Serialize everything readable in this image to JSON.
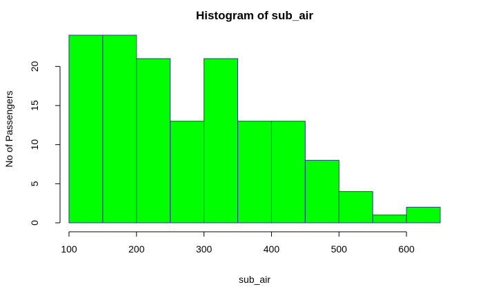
{
  "chart_data": {
    "type": "bar",
    "title": "Histogram of sub_air",
    "xlabel": "sub_air",
    "ylabel": "No of Passengers",
    "bins": [
      {
        "start": 100,
        "end": 150,
        "count": 24
      },
      {
        "start": 150,
        "end": 200,
        "count": 24
      },
      {
        "start": 200,
        "end": 250,
        "count": 21
      },
      {
        "start": 250,
        "end": 300,
        "count": 13
      },
      {
        "start": 300,
        "end": 350,
        "count": 21
      },
      {
        "start": 350,
        "end": 400,
        "count": 13
      },
      {
        "start": 400,
        "end": 450,
        "count": 13
      },
      {
        "start": 450,
        "end": 500,
        "count": 8
      },
      {
        "start": 500,
        "end": 550,
        "count": 4
      },
      {
        "start": 550,
        "end": 600,
        "count": 1
      },
      {
        "start": 600,
        "end": 650,
        "count": 2
      }
    ],
    "xlim": [
      100,
      650
    ],
    "ylim": [
      0,
      24
    ],
    "x_ticks": [
      100,
      200,
      300,
      400,
      500,
      600
    ],
    "y_ticks": [
      0,
      5,
      10,
      15,
      20
    ],
    "grid": false,
    "legend": "none",
    "bar_fill": "#00ff00",
    "bar_stroke": "#2e3a8c"
  }
}
